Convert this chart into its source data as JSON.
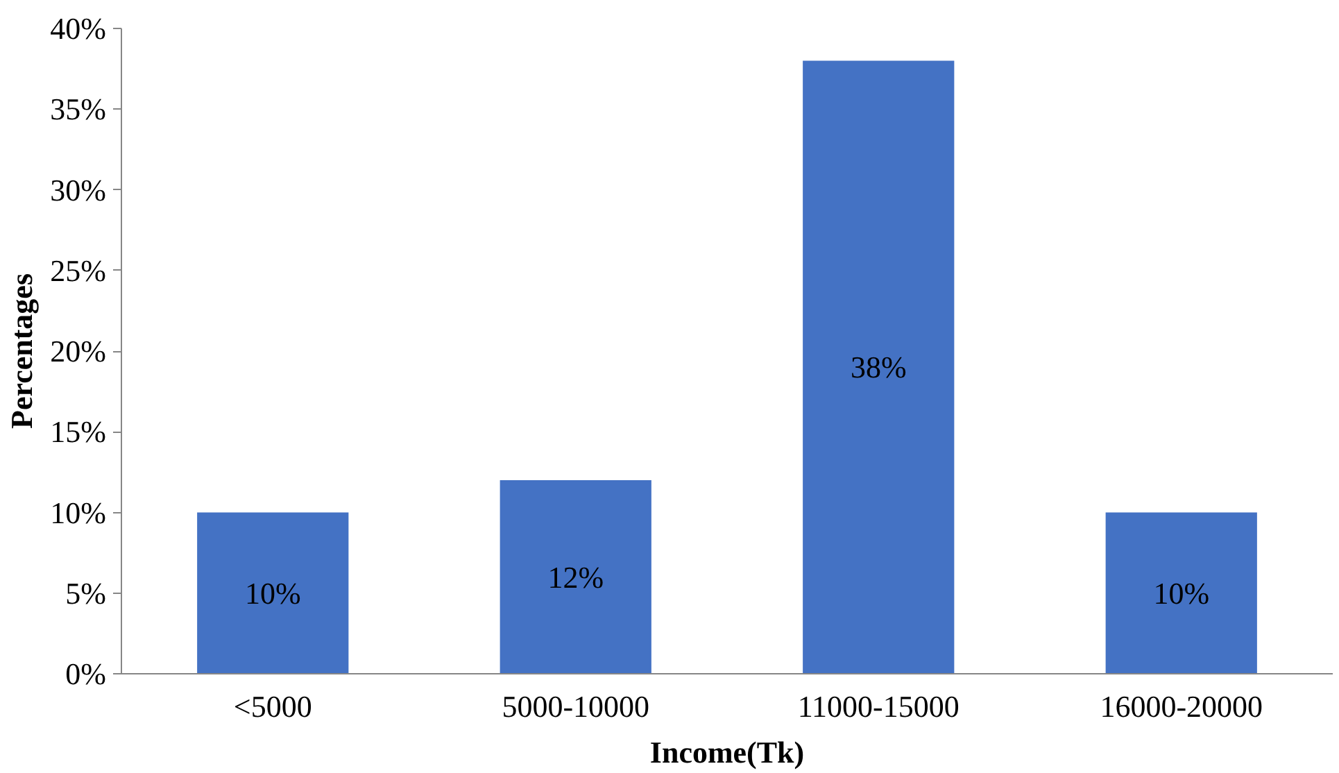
{
  "chart_data": {
    "type": "bar",
    "xlabel": "Income(Tk)",
    "ylabel": "Percentages",
    "categories": [
      "<5000",
      "5000-10000",
      "11000-15000",
      "16000-20000"
    ],
    "values": [
      10,
      12,
      38,
      10
    ],
    "color": "#4472c4",
    "value_labels": [
      "10%",
      "12%",
      "38%",
      "10%"
    ],
    "ylim": [
      0,
      40
    ],
    "yticks": [
      {
        "value": 0,
        "label": "0%"
      },
      {
        "value": 5,
        "label": "5%"
      },
      {
        "value": 10,
        "label": "10%"
      },
      {
        "value": 15,
        "label": "15%"
      },
      {
        "value": 20,
        "label": "20%"
      },
      {
        "value": 25,
        "label": "25%"
      },
      {
        "value": 30,
        "label": "30%"
      },
      {
        "value": 35,
        "label": "35%"
      },
      {
        "value": 40,
        "label": "40%"
      }
    ],
    "grid": false
  }
}
